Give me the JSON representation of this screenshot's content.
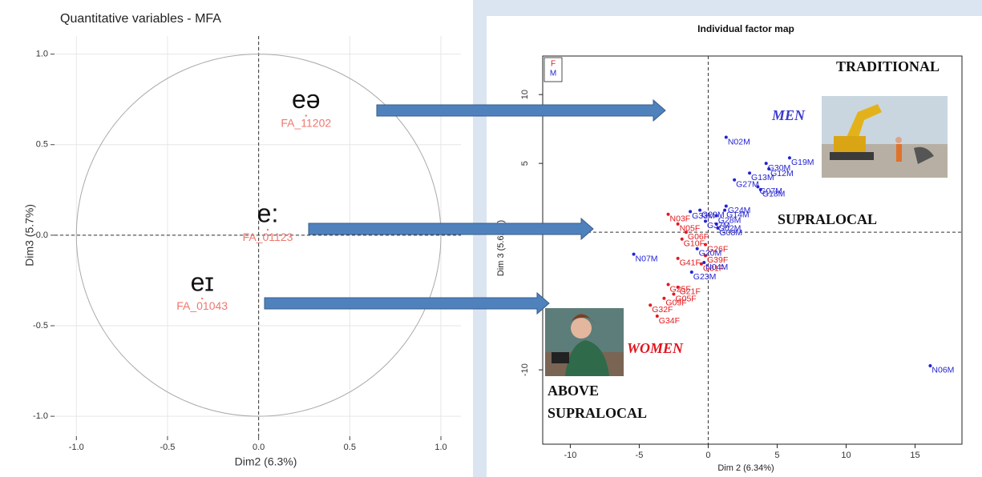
{
  "chart_data": [
    {
      "type": "scatter",
      "title": "Quantitative variables - MFA",
      "x_label": "Dim2 (6.3%)",
      "y_label": "Dim3 (5.7%)",
      "xlim": [
        -1.12,
        1.11
      ],
      "ylim": [
        -1.11,
        1.1
      ],
      "xticks": [
        {
          "value": -1,
          "label": "-1.0"
        },
        -0.5,
        {
          "value": 0,
          "label": "0.0"
        },
        0.5,
        {
          "value": 1,
          "label": "1.0"
        }
      ],
      "yticks": [
        {
          "value": -1,
          "label": "-1.0"
        },
        -0.5,
        {
          "value": 0,
          "label": "0.0"
        },
        0.5,
        {
          "value": 1,
          "label": "1.0"
        }
      ],
      "grid": true,
      "color": "#f0776f",
      "series": [
        {
          "labels": [
            "FA_11202",
            "FA_01123",
            "FA_01043"
          ],
          "x": [
            0.26,
            0.05,
            -0.31
          ],
          "values": [
            0.66,
            0.03,
            -0.35
          ],
          "annotations": [
            "eə",
            "e:",
            "eɪ"
          ]
        }
      ]
    },
    {
      "type": "scatter",
      "title": "Individual factor map",
      "x_label": "Dim 2 (6.34%)",
      "y_label": "Dim 3 (5.62%)",
      "xlim": [
        -12,
        18.4
      ],
      "ylim": [
        -15.4,
        12.8
      ],
      "xticks": [
        -10,
        -5,
        0,
        5,
        10,
        15
      ],
      "yticks": [
        -10,
        -5,
        0,
        5,
        10
      ],
      "grid": false,
      "legend": "top-left",
      "series": [
        {
          "name": "F",
          "color": "#e3191c",
          "labels": [
            "N03F",
            "N05F",
            "G06F",
            "G10F",
            "G26F",
            "G41F",
            "G39F",
            "G31F",
            "G21F",
            "G25F",
            "G09F",
            "G05F",
            "G32F",
            "G34F"
          ],
          "x": [
            -2.9,
            -2.2,
            -1.6,
            -1.9,
            -0.2,
            -2.2,
            -0.2,
            -0.5,
            -2.2,
            -2.9,
            -3.2,
            -2.5,
            -4.2,
            -3.7
          ],
          "values": [
            1.3,
            0.6,
            0.0,
            -0.5,
            -0.9,
            -1.9,
            -1.7,
            -2.3,
            -4.0,
            -3.8,
            -4.8,
            -4.5,
            -5.3,
            -6.1
          ]
        },
        {
          "name": "M",
          "color": "#2323d2",
          "labels": [
            "N02M",
            "G19M",
            "G30M",
            "G12M",
            "G13M",
            "G07M",
            "G27M",
            "G18M",
            "G24M",
            "G29M",
            "G14M",
            "G33M",
            "G28M",
            "G37M",
            "G02M",
            "G08M",
            "G20M",
            "N04M",
            "G23M",
            "N07M",
            "N06M"
          ],
          "x": [
            1.3,
            5.9,
            4.2,
            4.4,
            3.0,
            3.6,
            1.9,
            3.8,
            1.3,
            -0.6,
            1.2,
            -1.3,
            0.6,
            -0.2,
            0.6,
            0.7,
            -0.8,
            -0.3,
            -1.2,
            -5.4,
            16.1
          ],
          "values": [
            6.9,
            5.4,
            5.0,
            4.6,
            4.3,
            3.3,
            3.8,
            3.1,
            1.9,
            1.6,
            1.6,
            1.5,
            1.2,
            0.8,
            0.6,
            0.3,
            -1.2,
            -2.2,
            -2.9,
            -1.6,
            -9.7
          ]
        }
      ],
      "annotations": [
        "TRADITIONAL",
        "MEN",
        "SUPRALOCAL",
        "WOMEN",
        "ABOVE",
        "SUPRALOCAL"
      ]
    }
  ]
}
